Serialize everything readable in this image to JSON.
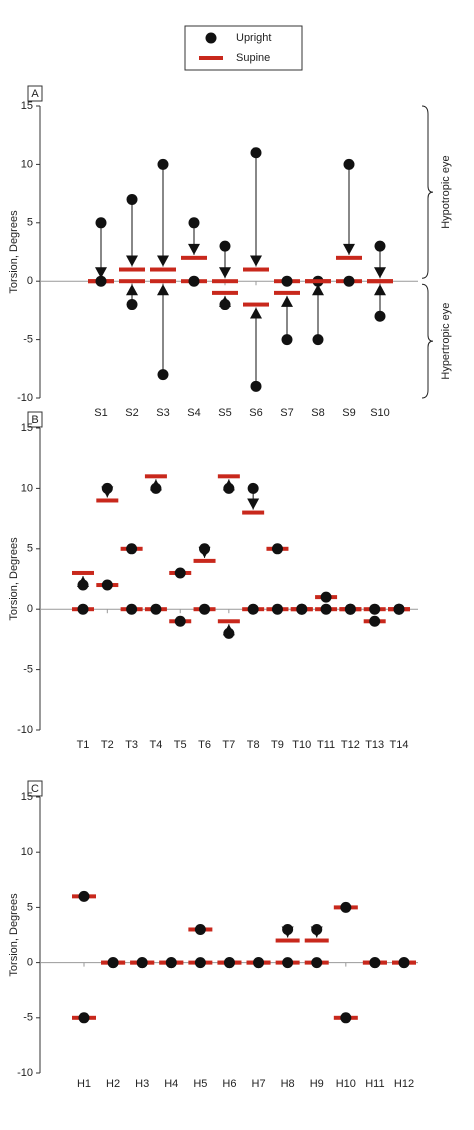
{
  "legend": {
    "items": [
      {
        "name": "Upright",
        "color": "#111111"
      },
      {
        "name": "Supine",
        "color": "#c8281c"
      }
    ]
  },
  "chart_data": [
    {
      "type": "dumbbell",
      "panel": "A",
      "ylabel": "Torsion, Degrees",
      "ylim": [
        -10,
        15
      ],
      "yticks": [
        -10,
        -5,
        0,
        5,
        10,
        15
      ],
      "categories": [
        "S1",
        "S2",
        "S3",
        "S4",
        "S5",
        "S6",
        "S7",
        "S8",
        "S9",
        "S10"
      ],
      "upright": [
        [
          5,
          0
        ],
        [
          7,
          -2
        ],
        [
          10,
          -8
        ],
        [
          5,
          0
        ],
        [
          3,
          -2
        ],
        [
          11,
          -9
        ],
        [
          0,
          -5
        ],
        [
          0,
          -5
        ],
        [
          10,
          0
        ],
        [
          3,
          -3
        ]
      ],
      "supine": [
        [
          0,
          0
        ],
        [
          1,
          0
        ],
        [
          1,
          0
        ],
        [
          2,
          0
        ],
        [
          0,
          -1
        ],
        [
          1,
          -2
        ],
        [
          0,
          -1
        ],
        [
          0,
          0
        ],
        [
          2,
          0
        ],
        [
          0,
          0
        ]
      ],
      "annotations": [
        "Hypotropic eye",
        "Hypertropic eye"
      ]
    },
    {
      "type": "dumbbell",
      "panel": "B",
      "ylabel": "Torsion, Degrees",
      "ylim": [
        -10,
        15
      ],
      "yticks": [
        -10,
        -5,
        0,
        5,
        10,
        15
      ],
      "categories": [
        "T1",
        "T2",
        "T3",
        "T4",
        "T5",
        "T6",
        "T7",
        "T8",
        "T9",
        "T10",
        "T11",
        "T12",
        "T13",
        "T14"
      ],
      "upright": [
        [
          2,
          0
        ],
        [
          10,
          2
        ],
        [
          5,
          0
        ],
        [
          10,
          0
        ],
        [
          3,
          -1
        ],
        [
          5,
          0
        ],
        [
          10,
          -2
        ],
        [
          10,
          0
        ],
        [
          5,
          0
        ],
        [
          0,
          0
        ],
        [
          1,
          0
        ],
        [
          0,
          0
        ],
        [
          -1,
          0
        ],
        [
          0,
          0
        ]
      ],
      "supine": [
        [
          3,
          0
        ],
        [
          9,
          2
        ],
        [
          5,
          0
        ],
        [
          11,
          0
        ],
        [
          3,
          -1
        ],
        [
          4,
          0
        ],
        [
          11,
          -1
        ],
        [
          8,
          0
        ],
        [
          5,
          0
        ],
        [
          0,
          0
        ],
        [
          1,
          0
        ],
        [
          0,
          0
        ],
        [
          -1,
          0
        ],
        [
          0,
          0
        ]
      ]
    },
    {
      "type": "dumbbell",
      "panel": "C",
      "ylabel": "Torsion, Degrees",
      "ylim": [
        -10,
        15
      ],
      "yticks": [
        -10,
        -5,
        0,
        5,
        10,
        15
      ],
      "categories": [
        "H1",
        "H2",
        "H3",
        "H4",
        "H5",
        "H6",
        "H7",
        "H8",
        "H9",
        "H10",
        "H11",
        "H12"
      ],
      "upright": [
        [
          6,
          -5
        ],
        [
          0,
          0
        ],
        [
          0,
          0
        ],
        [
          0,
          0
        ],
        [
          3,
          0
        ],
        [
          0,
          0
        ],
        [
          0,
          0
        ],
        [
          3,
          0
        ],
        [
          3,
          0
        ],
        [
          5,
          -5
        ],
        [
          0,
          0
        ],
        [
          0,
          0
        ]
      ],
      "supine": [
        [
          6,
          -5
        ],
        [
          0,
          0
        ],
        [
          0,
          0
        ],
        [
          0,
          0
        ],
        [
          3,
          0
        ],
        [
          0,
          0
        ],
        [
          0,
          0
        ],
        [
          2,
          0
        ],
        [
          2,
          0
        ],
        [
          5,
          -5
        ],
        [
          0,
          0
        ],
        [
          0,
          0
        ]
      ]
    }
  ]
}
